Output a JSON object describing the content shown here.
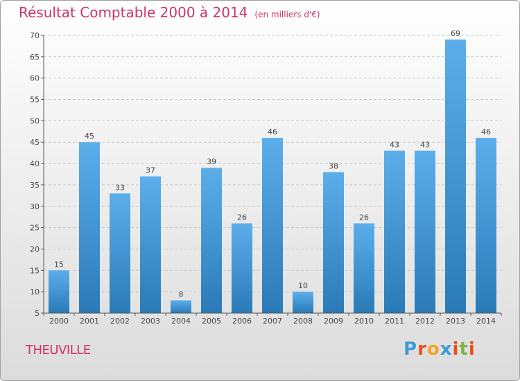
{
  "title": "Résultat Comptable 2000 à 2014",
  "unit": "(en milliers d'€)",
  "commune": "THEUVILLE",
  "logo": "Proxiti",
  "colors": {
    "title": "#cc3366",
    "bar_light": "#5caeeb",
    "bar_dark": "#2a7ab8",
    "logo": [
      "#3a9ad9",
      "#e94e1b",
      "#f5a623",
      "#3a9ad9",
      "#e94e1b",
      "#7cb342",
      "#e94e1b"
    ]
  },
  "chart_data": {
    "type": "bar",
    "categories": [
      "2000",
      "2001",
      "2002",
      "2003",
      "2004",
      "2005",
      "2006",
      "2007",
      "2008",
      "2009",
      "2010",
      "2011",
      "2012",
      "2013",
      "2014"
    ],
    "values": [
      15,
      45,
      33,
      37,
      8,
      39,
      26,
      46,
      10,
      38,
      26,
      43,
      43,
      69,
      46
    ],
    "ylim": [
      5,
      70
    ],
    "yticks": [
      5,
      10,
      15,
      20,
      25,
      30,
      35,
      40,
      45,
      50,
      55,
      60,
      65,
      70
    ],
    "grid": true,
    "title": "Résultat Comptable 2000 à 2014",
    "xlabel": "",
    "ylabel": ""
  }
}
